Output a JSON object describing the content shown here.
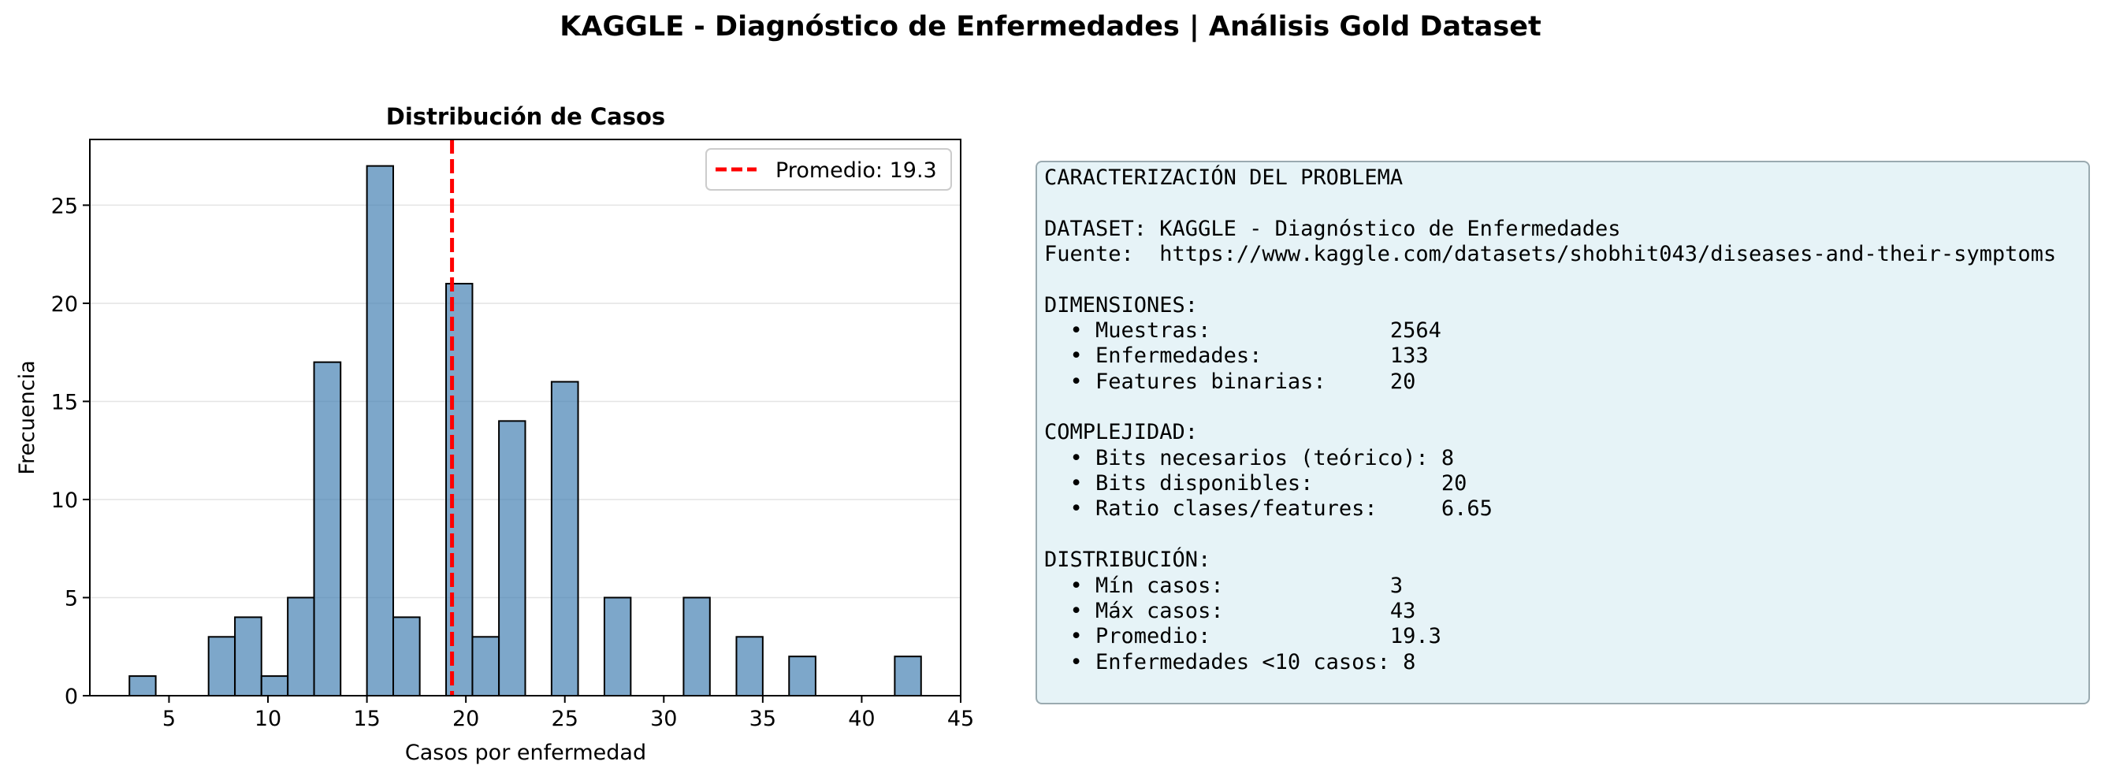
{
  "figure": {
    "title": "KAGGLE - Diagnóstico de Enfermedades | Análisis Gold Dataset"
  },
  "chart_data": {
    "type": "bar",
    "title": "Distribución de Casos",
    "xlabel": "Casos por enfermedad",
    "ylabel": "Frecuencia",
    "xlim": [
      1,
      45
    ],
    "ylim": [
      0,
      28.35
    ],
    "xticks": [
      5,
      10,
      15,
      20,
      25,
      30,
      35,
      40,
      45
    ],
    "yticks": [
      0,
      5,
      10,
      15,
      20,
      25
    ],
    "grid": "y",
    "bar_color": "#4682b4",
    "bar_edge_color": "#000000",
    "bins": [
      {
        "x0": 3.0,
        "x1": 4.33,
        "count": 1
      },
      {
        "x0": 4.33,
        "x1": 5.67,
        "count": 0
      },
      {
        "x0": 5.67,
        "x1": 7.0,
        "count": 0
      },
      {
        "x0": 7.0,
        "x1": 8.33,
        "count": 3
      },
      {
        "x0": 8.33,
        "x1": 9.67,
        "count": 4
      },
      {
        "x0": 9.67,
        "x1": 11.0,
        "count": 1
      },
      {
        "x0": 11.0,
        "x1": 12.33,
        "count": 5
      },
      {
        "x0": 12.33,
        "x1": 13.67,
        "count": 17
      },
      {
        "x0": 13.67,
        "x1": 15.0,
        "count": 0
      },
      {
        "x0": 15.0,
        "x1": 16.33,
        "count": 27
      },
      {
        "x0": 16.33,
        "x1": 17.67,
        "count": 4
      },
      {
        "x0": 17.67,
        "x1": 19.0,
        "count": 0
      },
      {
        "x0": 19.0,
        "x1": 20.33,
        "count": 21
      },
      {
        "x0": 20.33,
        "x1": 21.67,
        "count": 3
      },
      {
        "x0": 21.67,
        "x1": 23.0,
        "count": 14
      },
      {
        "x0": 23.0,
        "x1": 24.33,
        "count": 0
      },
      {
        "x0": 24.33,
        "x1": 25.67,
        "count": 16
      },
      {
        "x0": 25.67,
        "x1": 27.0,
        "count": 0
      },
      {
        "x0": 27.0,
        "x1": 28.33,
        "count": 5
      },
      {
        "x0": 28.33,
        "x1": 29.67,
        "count": 0
      },
      {
        "x0": 29.67,
        "x1": 31.0,
        "count": 0
      },
      {
        "x0": 31.0,
        "x1": 32.33,
        "count": 5
      },
      {
        "x0": 32.33,
        "x1": 33.67,
        "count": 0
      },
      {
        "x0": 33.67,
        "x1": 35.0,
        "count": 3
      },
      {
        "x0": 35.0,
        "x1": 36.33,
        "count": 0
      },
      {
        "x0": 36.33,
        "x1": 37.67,
        "count": 2
      },
      {
        "x0": 37.67,
        "x1": 39.0,
        "count": 0
      },
      {
        "x0": 39.0,
        "x1": 40.33,
        "count": 0
      },
      {
        "x0": 40.33,
        "x1": 41.67,
        "count": 0
      },
      {
        "x0": 41.67,
        "x1": 43.0,
        "count": 2
      }
    ],
    "mean_line": {
      "value": 19.3,
      "label": "Promedio: 19.3",
      "color": "#ff0000",
      "style": "dashed"
    },
    "legend": {
      "placement": "top-right",
      "entries": [
        "Promedio: 19.3"
      ]
    }
  },
  "info_panel": {
    "lines": [
      "CARACTERIZACIÓN DEL PROBLEMA",
      "",
      "DATASET: KAGGLE - Diagnóstico de Enfermedades",
      "Fuente:  https://www.kaggle.com/datasets/shobhit043/diseases-and-their-symptoms",
      "",
      "DIMENSIONES:",
      "  • Muestras:              2564",
      "  • Enfermedades:          133",
      "  • Features binarias:     20",
      "",
      "COMPLEJIDAD:",
      "  • Bits necesarios (teórico): 8",
      "  • Bits disponibles:          20",
      "  • Ratio clases/features:     6.65",
      "",
      "DISTRIBUCIÓN:",
      "  • Mín casos:             3",
      "  • Máx casos:             43",
      "  • Promedio:              19.3",
      "  • Enfermedades <10 casos: 8"
    ],
    "background": "#e6f3f7",
    "border_color": "#9aaab0"
  }
}
